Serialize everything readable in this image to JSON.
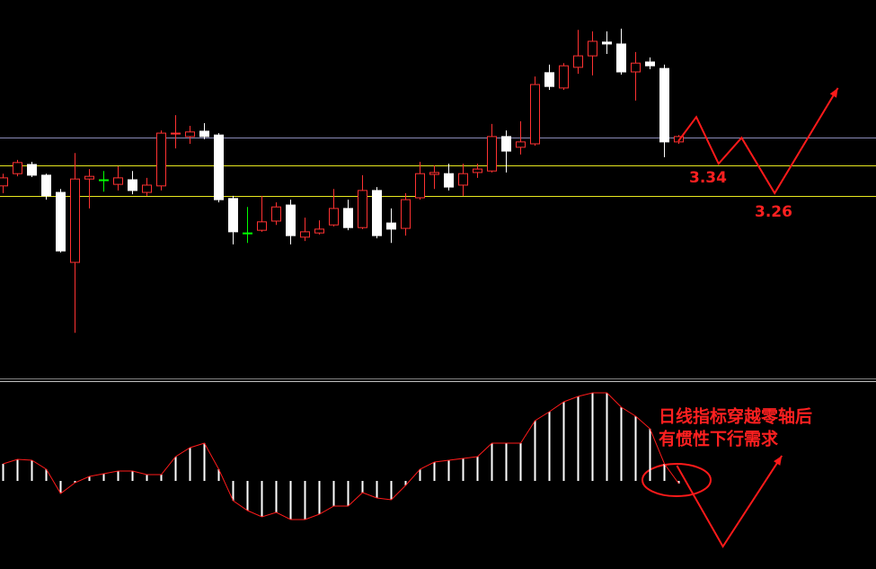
{
  "chart_data": [
    {
      "type": "candlestick",
      "up_color": "#ff3232",
      "down_color": "#ffffff",
      "doji_color": "#00ff00",
      "ylim": [
        2.785,
        3.772
      ],
      "open": [
        3.286,
        3.318,
        3.342,
        3.314,
        3.269,
        3.086,
        3.304,
        3.302,
        3.29,
        3.302,
        3.269,
        3.286,
        3.422,
        3.415,
        3.429,
        3.419,
        3.253,
        3.163,
        3.17,
        3.194,
        3.236,
        3.152,
        3.163,
        3.184,
        3.227,
        3.177,
        3.274,
        3.189,
        3.175,
        3.255,
        3.316,
        3.318,
        3.288,
        3.321,
        3.325,
        3.415,
        3.387,
        3.396,
        3.582,
        3.542,
        3.596,
        3.626,
        3.662,
        3.657,
        3.584,
        3.61,
        3.593,
        3.401
      ],
      "high": [
        3.318,
        3.354,
        3.349,
        3.318,
        3.278,
        3.372,
        3.33,
        3.325,
        3.337,
        3.325,
        3.307,
        3.431,
        3.471,
        3.443,
        3.45,
        3.424,
        3.26,
        3.231,
        3.26,
        3.243,
        3.25,
        3.203,
        3.196,
        3.278,
        3.25,
        3.314,
        3.283,
        3.227,
        3.267,
        3.349,
        3.34,
        3.344,
        3.344,
        3.344,
        3.448,
        3.431,
        3.455,
        3.572,
        3.603,
        3.607,
        3.694,
        3.69,
        3.69,
        3.697,
        3.636,
        3.622,
        3.603,
        3.419
      ],
      "low": [
        3.267,
        3.311,
        3.309,
        3.25,
        3.112,
        2.902,
        3.227,
        3.271,
        3.274,
        3.264,
        3.26,
        3.274,
        3.384,
        3.396,
        3.408,
        3.243,
        3.133,
        3.137,
        3.166,
        3.184,
        3.133,
        3.142,
        3.159,
        3.18,
        3.17,
        3.173,
        3.149,
        3.137,
        3.156,
        3.25,
        3.278,
        3.274,
        3.26,
        3.307,
        3.321,
        3.321,
        3.368,
        3.391,
        3.537,
        3.537,
        3.579,
        3.575,
        3.631,
        3.577,
        3.509,
        3.591,
        3.361,
        3.396
      ],
      "close": [
        3.307,
        3.347,
        3.314,
        3.26,
        3.116,
        3.304,
        3.311,
        3.302,
        3.307,
        3.274,
        3.288,
        3.424,
        3.424,
        3.427,
        3.415,
        3.25,
        3.166,
        3.163,
        3.192,
        3.231,
        3.156,
        3.166,
        3.173,
        3.227,
        3.177,
        3.274,
        3.156,
        3.173,
        3.25,
        3.318,
        3.321,
        3.283,
        3.318,
        3.33,
        3.415,
        3.377,
        3.401,
        3.551,
        3.546,
        3.6,
        3.626,
        3.664,
        3.657,
        3.584,
        3.607,
        3.6,
        3.401,
        3.415
      ],
      "levels": [
        {
          "value": 3.412,
          "color": "#8a8ab8"
        },
        {
          "value": 3.34,
          "color": "#e8e820"
        },
        {
          "value": 3.26,
          "color": "#e8e820"
        }
      ],
      "projection": {
        "color": "#ff1a1a",
        "x": [
          47,
          48.25,
          49.8,
          51.4,
          53.7,
          58.1
        ],
        "values": [
          3.403,
          3.466,
          3.344,
          3.412,
          3.267,
          3.542
        ]
      },
      "annotations": [
        "3.34",
        "3.26"
      ]
    },
    {
      "type": "macd",
      "bar_color": "#ffffff",
      "line_color": "#ff1a1a",
      "ylim": [
        -0.98,
        1.07
      ],
      "values": [
        0.19,
        0.24,
        0.23,
        0.13,
        -0.14,
        -0.02,
        0.05,
        0.08,
        0.11,
        0.11,
        0.07,
        0.07,
        0.27,
        0.37,
        0.42,
        0.13,
        -0.22,
        -0.33,
        -0.4,
        -0.35,
        -0.43,
        -0.43,
        -0.37,
        -0.28,
        -0.28,
        -0.13,
        -0.19,
        -0.21,
        -0.05,
        0.13,
        0.21,
        0.23,
        0.25,
        0.27,
        0.42,
        0.42,
        0.42,
        0.67,
        0.77,
        0.88,
        0.94,
        0.98,
        0.98,
        0.82,
        0.72,
        0.58,
        0.19,
        -0.03
      ],
      "projection": {
        "color": "#ff1a1a",
        "x": [
          46.9,
          50.1,
          54.2
        ],
        "values": [
          0.17,
          -0.73,
          0.28
        ]
      },
      "annotation": [
        "日线指标穿越零轴后",
        "有惯性下行需求"
      ]
    }
  ]
}
